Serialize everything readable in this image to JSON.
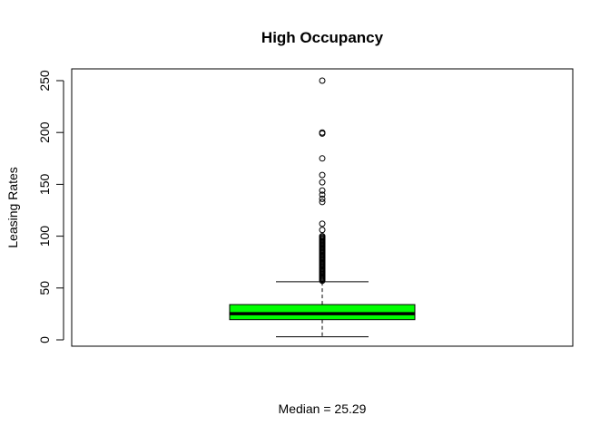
{
  "chart_data": {
    "type": "boxplot",
    "title": "High Occupancy",
    "ylabel": "Leasing Rates",
    "xlabel": "Median = 25.29",
    "ylim": [
      0,
      250
    ],
    "yticks": [
      0,
      50,
      100,
      150,
      200,
      250
    ],
    "ytick_labels": [
      "0",
      "50",
      "100",
      "150",
      "200",
      "250"
    ],
    "box": {
      "whisker_low": 3,
      "q1": 19.5,
      "median": 25.29,
      "q3": 34,
      "whisker_high": 56,
      "fill_color": "#00ff00"
    },
    "outliers": [
      57,
      58,
      59,
      60,
      61,
      62,
      63,
      64,
      65,
      66,
      67,
      68,
      69,
      70,
      71,
      72,
      73,
      74,
      75,
      76,
      77,
      78,
      79,
      80,
      81,
      82,
      83,
      84,
      85,
      86,
      87,
      88,
      89,
      90,
      91,
      92,
      93,
      94,
      95,
      96,
      97,
      98,
      99,
      100,
      106,
      112,
      133,
      136,
      140,
      144,
      152,
      159,
      175,
      199,
      200,
      250
    ]
  }
}
